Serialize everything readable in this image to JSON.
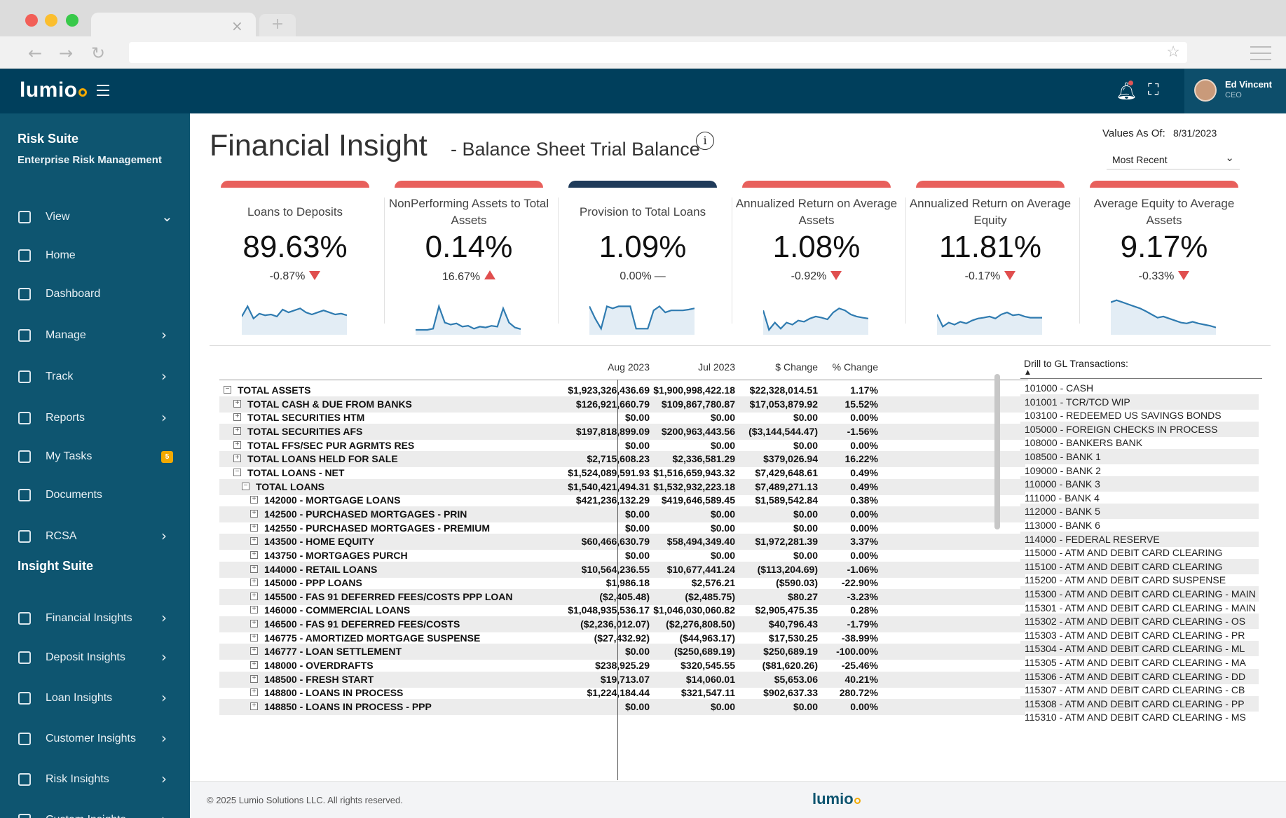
{
  "browser": {
    "tab_close": "×",
    "new_tab": "+"
  },
  "header": {
    "logo": "lumio",
    "user_name": "Ed Vincent",
    "user_role": "CEO"
  },
  "sidebar": {
    "suite_title": "Risk Suite",
    "suite_subtitle": "Enterprise Risk Management",
    "items": [
      {
        "label": "View",
        "arrow": "⌄",
        "icon": "view-icon"
      },
      {
        "label": "Home",
        "icon": "home-icon"
      },
      {
        "label": "Dashboard",
        "icon": "layers-icon"
      },
      {
        "label": "Manage",
        "arrow": "›",
        "icon": "manage-icon"
      },
      {
        "label": "Track",
        "arrow": "›",
        "icon": "track-icon"
      },
      {
        "label": "Reports",
        "arrow": "›",
        "icon": "chart-icon"
      },
      {
        "label": "My Tasks",
        "badge": "5",
        "icon": "tasks-icon"
      },
      {
        "label": "Documents",
        "icon": "documents-icon"
      },
      {
        "label": "RCSA",
        "arrow": "›",
        "icon": "rcsa-icon"
      }
    ],
    "insight_title": "Insight Suite",
    "insight_items": [
      {
        "label": "Financial Insights",
        "arrow": "›",
        "icon": "financial-icon"
      },
      {
        "label": "Deposit Insights",
        "arrow": "›",
        "icon": "deposit-icon"
      },
      {
        "label": "Loan Insights",
        "arrow": "›",
        "icon": "loan-icon"
      },
      {
        "label": "Customer Insights",
        "arrow": "›",
        "icon": "customer-icon"
      },
      {
        "label": "Risk Insights",
        "arrow": "›",
        "icon": "risk-icon"
      },
      {
        "label": "Custom Insights",
        "arrow": "›",
        "icon": "custom-icon"
      }
    ]
  },
  "page": {
    "title": "Financial Insight",
    "subtitle": "- Balance Sheet Trial Balance",
    "info": "i",
    "values_as_of_label": "Values As Of:",
    "values_as_of_date": "8/31/2023",
    "period_select": "Most Recent"
  },
  "colors": {
    "accent_red": "#e8605c",
    "accent_navy": "#1f3b5a",
    "sidebar": "#0e5570",
    "header": "#003f5c",
    "spark": "#2f7bb0"
  },
  "kpis": [
    {
      "label": "Loans to Deposits",
      "value": "89.63%",
      "change": "-0.87%",
      "direction": "down",
      "bar": "red",
      "trend": [
        55,
        30,
        60,
        48,
        52,
        50,
        55,
        38,
        45,
        40,
        35,
        45,
        50,
        45,
        40,
        45,
        50,
        48,
        52
      ]
    },
    {
      "label": "NonPerforming Assets to Total Assets",
      "value": "0.14%",
      "change": "16.67%",
      "direction": "up",
      "bar": "red",
      "trend": [
        88,
        88,
        88,
        85,
        30,
        70,
        75,
        72,
        80,
        78,
        85,
        80,
        82,
        78,
        80,
        35,
        70,
        82,
        86
      ]
    },
    {
      "label": "Provision to Total Loans",
      "value": "1.09%",
      "change": "0.00%",
      "direction": "flat",
      "bar": "navy",
      "trend": [
        30,
        60,
        85,
        30,
        35,
        30,
        30,
        30,
        85,
        85,
        85,
        40,
        30,
        45,
        40,
        40,
        40,
        38,
        35
      ]
    },
    {
      "label": "Annualized Return on Average Assets",
      "value": "1.08%",
      "change": "-0.92%",
      "direction": "down",
      "bar": "red",
      "trend": [
        40,
        88,
        70,
        85,
        70,
        75,
        65,
        68,
        60,
        55,
        58,
        62,
        45,
        35,
        40,
        50,
        55,
        58,
        60
      ]
    },
    {
      "label": "Annualized Return on Average Equity",
      "value": "11.81%",
      "change": "-0.17%",
      "direction": "down",
      "bar": "red",
      "trend": [
        50,
        80,
        70,
        75,
        68,
        72,
        65,
        60,
        58,
        55,
        60,
        50,
        45,
        52,
        50,
        55,
        58,
        58,
        58
      ]
    },
    {
      "label": "Average Equity to Average Assets",
      "value": "9.17%",
      "change": "-0.33%",
      "direction": "down",
      "bar": "red",
      "trend": [
        20,
        15,
        20,
        25,
        30,
        35,
        42,
        50,
        58,
        55,
        60,
        65,
        70,
        72,
        68,
        72,
        75,
        78,
        82
      ]
    }
  ],
  "kpi_indicators": {
    "flat": "—"
  },
  "table": {
    "columns": [
      "Aug 2023",
      "Jul 2023",
      "$ Change",
      "% Change"
    ],
    "expand_open": "−",
    "expand_closed": "+",
    "rows": [
      {
        "indent": 0,
        "open": true,
        "name": "TOTAL ASSETS",
        "aug": "$1,923,326,436.69",
        "jul": "$1,900,998,422.18",
        "chg": "$22,328,014.51",
        "pct": "1.17%"
      },
      {
        "indent": 1,
        "open": false,
        "name": "TOTAL CASH & DUE FROM BANKS",
        "aug": "$126,921,660.79",
        "jul": "$109,867,780.87",
        "chg": "$17,053,879.92",
        "pct": "15.52%"
      },
      {
        "indent": 1,
        "open": false,
        "name": "TOTAL SECURITIES HTM",
        "aug": "$0.00",
        "jul": "$0.00",
        "chg": "$0.00",
        "pct": "0.00%"
      },
      {
        "indent": 1,
        "open": false,
        "name": "TOTAL SECURITIES AFS",
        "aug": "$197,818,899.09",
        "jul": "$200,963,443.56",
        "chg": "($3,144,544.47)",
        "pct": "-1.56%"
      },
      {
        "indent": 1,
        "open": false,
        "name": "TOTAL FFS/SEC PUR AGRMTS RES",
        "aug": "$0.00",
        "jul": "$0.00",
        "chg": "$0.00",
        "pct": "0.00%"
      },
      {
        "indent": 1,
        "open": false,
        "name": "TOTAL LOANS HELD FOR SALE",
        "aug": "$2,715,608.23",
        "jul": "$2,336,581.29",
        "chg": "$379,026.94",
        "pct": "16.22%"
      },
      {
        "indent": 1,
        "open": true,
        "name": "TOTAL LOANS - NET",
        "aug": "$1,524,089,591.93",
        "jul": "$1,516,659,943.32",
        "chg": "$7,429,648.61",
        "pct": "0.49%"
      },
      {
        "indent": 2,
        "open": true,
        "name": "TOTAL LOANS",
        "aug": "$1,540,421,494.31",
        "jul": "$1,532,932,223.18",
        "chg": "$7,489,271.13",
        "pct": "0.49%"
      },
      {
        "indent": 3,
        "open": false,
        "name": "142000 - MORTGAGE LOANS",
        "aug": "$421,236,132.29",
        "jul": "$419,646,589.45",
        "chg": "$1,589,542.84",
        "pct": "0.38%"
      },
      {
        "indent": 3,
        "open": false,
        "name": "142500 - PURCHASED MORTGAGES - PRIN",
        "aug": "$0.00",
        "jul": "$0.00",
        "chg": "$0.00",
        "pct": "0.00%"
      },
      {
        "indent": 3,
        "open": false,
        "name": "142550 - PURCHASED MORTGAGES - PREMIUM",
        "aug": "$0.00",
        "jul": "$0.00",
        "chg": "$0.00",
        "pct": "0.00%"
      },
      {
        "indent": 3,
        "open": false,
        "name": "143500 - HOME EQUITY",
        "aug": "$60,466,630.79",
        "jul": "$58,494,349.40",
        "chg": "$1,972,281.39",
        "pct": "3.37%"
      },
      {
        "indent": 3,
        "open": false,
        "name": "143750 - MORTGAGES PURCH",
        "aug": "$0.00",
        "jul": "$0.00",
        "chg": "$0.00",
        "pct": "0.00%"
      },
      {
        "indent": 3,
        "open": false,
        "name": "144000 - RETAIL LOANS",
        "aug": "$10,564,236.55",
        "jul": "$10,677,441.24",
        "chg": "($113,204.69)",
        "pct": "-1.06%"
      },
      {
        "indent": 3,
        "open": false,
        "name": "145000 - PPP LOANS",
        "aug": "$1,986.18",
        "jul": "$2,576.21",
        "chg": "($590.03)",
        "pct": "-22.90%"
      },
      {
        "indent": 3,
        "open": false,
        "name": "145500 - FAS 91 DEFERRED FEES/COSTS PPP LOAN",
        "aug": "($2,405.48)",
        "jul": "($2,485.75)",
        "chg": "$80.27",
        "pct": "-3.23%"
      },
      {
        "indent": 3,
        "open": false,
        "name": "146000 - COMMERCIAL LOANS",
        "aug": "$1,048,935,536.17",
        "jul": "$1,046,030,060.82",
        "chg": "$2,905,475.35",
        "pct": "0.28%"
      },
      {
        "indent": 3,
        "open": false,
        "name": "146500 - FAS 91 DEFERRED FEES/COSTS",
        "aug": "($2,236,012.07)",
        "jul": "($2,276,808.50)",
        "chg": "$40,796.43",
        "pct": "-1.79%"
      },
      {
        "indent": 3,
        "open": false,
        "name": "146775 - AMORTIZED MORTGAGE SUSPENSE",
        "aug": "($27,432.92)",
        "jul": "($44,963.17)",
        "chg": "$17,530.25",
        "pct": "-38.99%"
      },
      {
        "indent": 3,
        "open": false,
        "name": "146777 - LOAN SETTLEMENT",
        "aug": "$0.00",
        "jul": "($250,689.19)",
        "chg": "$250,689.19",
        "pct": "-100.00%"
      },
      {
        "indent": 3,
        "open": false,
        "name": "148000 - OVERDRAFTS",
        "aug": "$238,925.29",
        "jul": "$320,545.55",
        "chg": "($81,620.26)",
        "pct": "-25.46%"
      },
      {
        "indent": 3,
        "open": false,
        "name": "148500 - FRESH START",
        "aug": "$19,713.07",
        "jul": "$14,060.01",
        "chg": "$5,653.06",
        "pct": "40.21%"
      },
      {
        "indent": 3,
        "open": false,
        "name": "148800 - LOANS IN PROCESS",
        "aug": "$1,224,184.44",
        "jul": "$321,547.11",
        "chg": "$902,637.33",
        "pct": "280.72%"
      },
      {
        "indent": 3,
        "open": false,
        "name": "148850 - LOANS IN PROCESS - PPP",
        "aug": "$0.00",
        "jul": "$0.00",
        "chg": "$0.00",
        "pct": "0.00%"
      }
    ]
  },
  "drill": {
    "title": "Drill to GL Transactions:",
    "sort_indicator": "▲",
    "items": [
      "101000 - CASH",
      "101001 - TCR/TCD WIP",
      "103100 - REDEEMED US SAVINGS BONDS",
      "105000 - FOREIGN CHECKS IN PROCESS",
      "108000 - BANKERS BANK",
      "108500 - BANK 1",
      "109000 - BANK 2",
      "110000 - BANK 3",
      "111000 - BANK 4",
      "112000 - BANK 5",
      "113000 - BANK 6",
      "114000 - FEDERAL RESERVE",
      "115000 - ATM AND DEBIT CARD CLEARING",
      "115100 - ATM AND DEBIT CARD CLEARING",
      "115200 - ATM AND DEBIT CARD SUSPENSE",
      "115300 - ATM AND DEBIT CARD CLEARING - MAIN",
      "115301 - ATM AND DEBIT CARD CLEARING - MAIN",
      "115302 - ATM AND DEBIT CARD CLEARING - OS",
      "115303 - ATM AND DEBIT CARD CLEARING - PR",
      "115304 - ATM AND DEBIT CARD CLEARING - ML",
      "115305 - ATM AND DEBIT CARD CLEARING - MA",
      "115306 - ATM AND DEBIT CARD CLEARING - DD",
      "115307 - ATM AND DEBIT CARD CLEARING - CB",
      "115308 - ATM AND DEBIT CARD CLEARING - PP",
      "115310 - ATM AND DEBIT CARD CLEARING - MS"
    ]
  },
  "footer": {
    "copyright": "© 2025 Lumio Solutions LLC. All rights reserved.",
    "logo": "lumio"
  }
}
